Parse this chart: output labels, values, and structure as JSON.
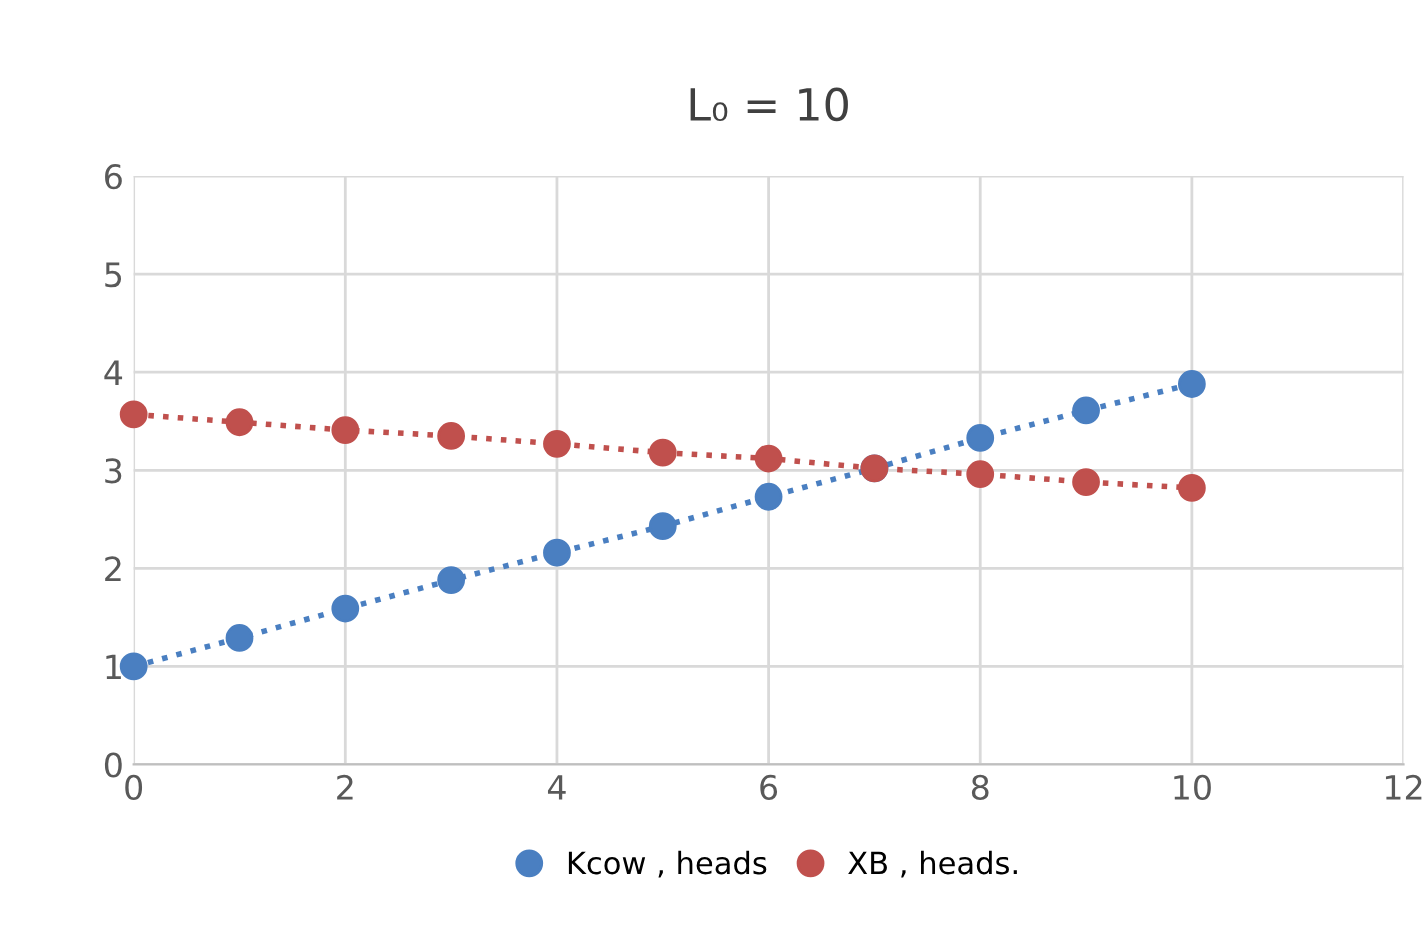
{
  "chart_data": {
    "type": "line",
    "title": "L₀ = 10",
    "x": [
      0,
      1,
      2,
      3,
      4,
      5,
      6,
      7,
      8,
      9,
      10
    ],
    "series": [
      {
        "name": "Kcow , heads",
        "color": "#4a7fc1",
        "values": [
          1.0,
          1.29,
          1.59,
          1.88,
          2.16,
          2.43,
          2.73,
          3.02,
          3.33,
          3.61,
          3.88
        ]
      },
      {
        "name": "XB , heads.",
        "color": "#c0504d",
        "values": [
          3.57,
          3.49,
          3.41,
          3.35,
          3.27,
          3.18,
          3.12,
          3.02,
          2.96,
          2.88,
          2.82
        ]
      }
    ],
    "xlim": [
      0,
      12
    ],
    "xticks": [
      0,
      2,
      4,
      6,
      8,
      10,
      12
    ],
    "ylim": [
      0,
      6
    ],
    "yticks": [
      0,
      1,
      2,
      3,
      4,
      5,
      6
    ],
    "grid": true,
    "legend": "bottom",
    "marker": "circle",
    "line_style": "dotted"
  }
}
